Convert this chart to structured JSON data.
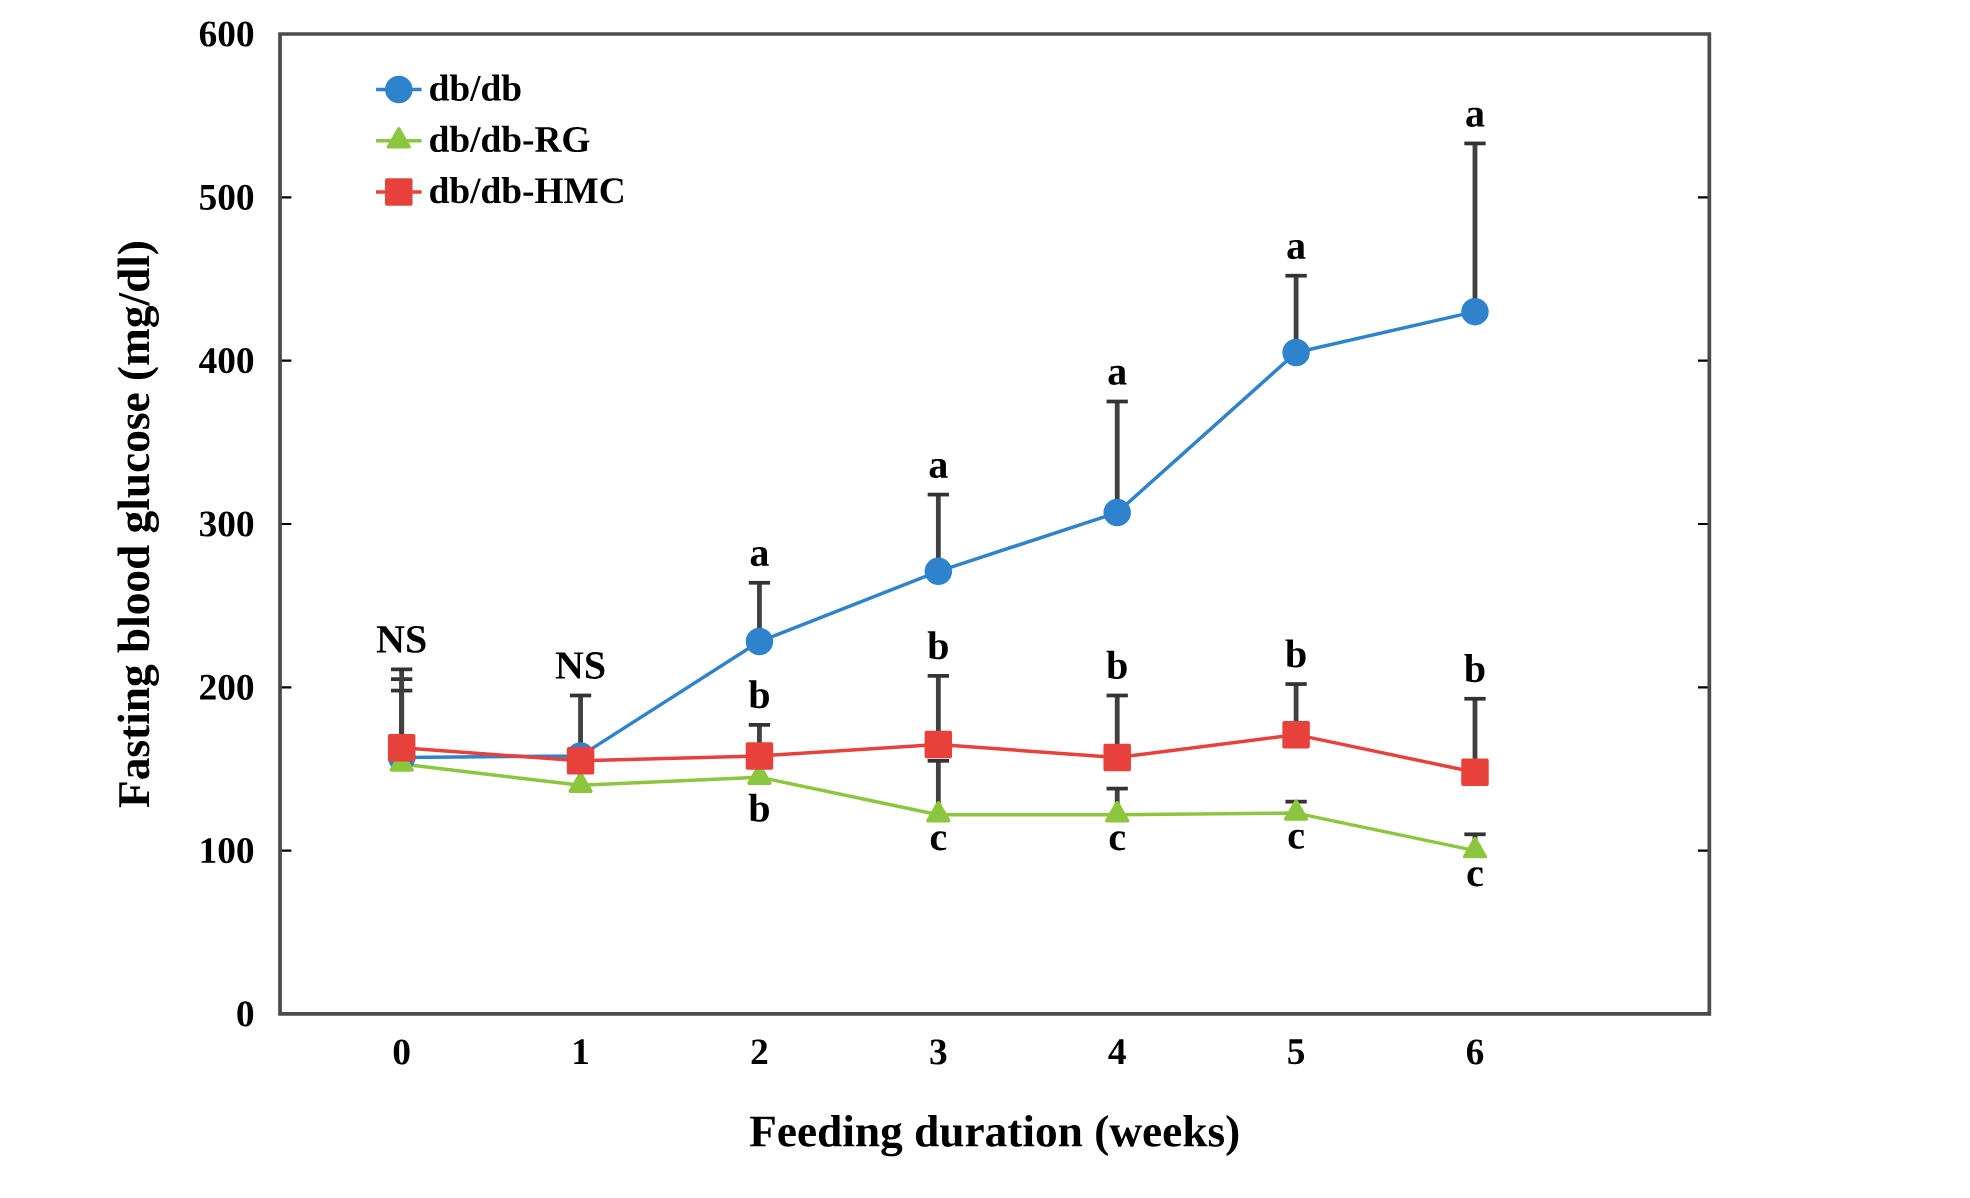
{
  "chart_data": {
    "type": "line",
    "xlabel": "Feeding duration (weeks)",
    "ylabel": "Fasting blood glucose (mg/dl)",
    "categories": [
      "0",
      "1",
      "2",
      "3",
      "4",
      "5",
      "6"
    ],
    "ylim": [
      0,
      600
    ],
    "yticks": [
      0,
      100,
      200,
      300,
      400,
      500,
      600
    ],
    "legend": "top left",
    "grid": false,
    "series": [
      {
        "name": "db/db",
        "color": "#2f83cc",
        "marker": "circle",
        "values": [
          157,
          158,
          228,
          271,
          307,
          405,
          430
        ],
        "errors": [
          [
            157,
            205
          ],
          [
            158,
            195
          ],
          [
            228,
            264
          ],
          [
            271,
            318
          ],
          [
            307,
            375
          ],
          [
            405,
            452
          ],
          [
            430,
            533
          ]
        ]
      },
      {
        "name": "db/db-RG",
        "color": "#8cc63f",
        "marker": "triangle",
        "values": [
          153,
          140,
          145,
          122,
          122,
          123,
          100
        ],
        "errors": [
          [
            153,
            198
          ],
          null,
          null,
          [
            122,
            155
          ],
          [
            122,
            138
          ],
          [
            123,
            130
          ],
          [
            100,
            110
          ]
        ]
      },
      {
        "name": "db/db-HMC",
        "color": "#e8413c",
        "marker": "square",
        "values": [
          163,
          155,
          158,
          165,
          157,
          171,
          148
        ],
        "errors": [
          [
            163,
            211
          ],
          null,
          [
            158,
            177
          ],
          [
            165,
            207
          ],
          [
            157,
            195
          ],
          [
            171,
            202
          ],
          [
            148,
            193
          ]
        ]
      }
    ],
    "annotations": [
      {
        "text": "NS",
        "x": "0",
        "y": 211
      },
      {
        "text": "NS",
        "x": "1",
        "y": 195
      },
      {
        "text": "a",
        "x": "2",
        "y": 264
      },
      {
        "text": "b",
        "x": "2",
        "y": 177
      },
      {
        "text": "b",
        "x": "2",
        "y": 145
      },
      {
        "text": "a",
        "x": "3",
        "y": 318
      },
      {
        "text": "b",
        "x": "3",
        "y": 207
      },
      {
        "text": "c",
        "x": "3",
        "y": 122
      },
      {
        "text": "a",
        "x": "4",
        "y": 375
      },
      {
        "text": "b",
        "x": "4",
        "y": 195
      },
      {
        "text": "c",
        "x": "4",
        "y": 122
      },
      {
        "text": "a",
        "x": "5",
        "y": 452
      },
      {
        "text": "b",
        "x": "5",
        "y": 202
      },
      {
        "text": "c",
        "x": "5",
        "y": 123
      },
      {
        "text": "a",
        "x": "6",
        "y": 533
      },
      {
        "text": "b",
        "x": "6",
        "y": 193
      },
      {
        "text": "c",
        "x": "6",
        "y": 100
      }
    ]
  }
}
